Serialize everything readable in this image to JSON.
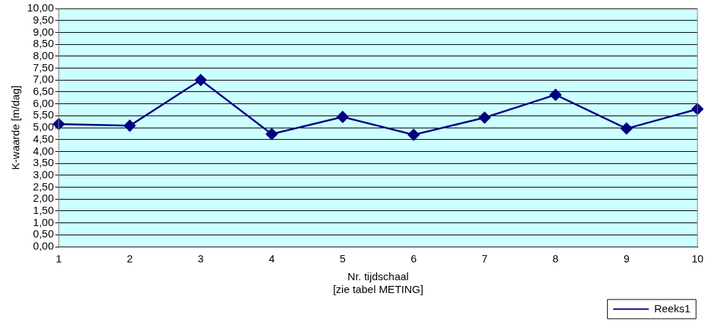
{
  "chart_data": {
    "type": "line",
    "xlabel": "Nr. tijdschaal\n[zie tabel METING]",
    "ylabel": "K-waarde [m/dag]",
    "categories": [
      "1",
      "2",
      "3",
      "4",
      "5",
      "6",
      "7",
      "8",
      "9",
      "10"
    ],
    "series": [
      {
        "name": "Reeks1",
        "color": "#000080",
        "values": [
          5.15,
          5.08,
          7.0,
          4.73,
          5.45,
          4.7,
          5.42,
          6.38,
          4.96,
          5.78
        ]
      }
    ],
    "ylim": [
      0,
      10
    ],
    "yticks": [
      {
        "value": 0,
        "label": "0,00"
      },
      {
        "value": 0.5,
        "label": "0,50"
      },
      {
        "value": 1,
        "label": "1,00"
      },
      {
        "value": 1.5,
        "label": "1,50"
      },
      {
        "value": 2,
        "label": "2,00"
      },
      {
        "value": 2.5,
        "label": "2,50"
      },
      {
        "value": 3,
        "label": "3,00"
      },
      {
        "value": 3.5,
        "label": "3,50"
      },
      {
        "value": 4,
        "label": "4,00"
      },
      {
        "value": 4.5,
        "label": "4,50"
      },
      {
        "value": 5,
        "label": "5,00"
      },
      {
        "value": 5.5,
        "label": "5,50"
      },
      {
        "value": 6,
        "label": "6,00"
      },
      {
        "value": 6.5,
        "label": "6,50"
      },
      {
        "value": 7,
        "label": "7,00"
      },
      {
        "value": 7.5,
        "label": "7,50"
      },
      {
        "value": 8,
        "label": "8,00"
      },
      {
        "value": 8.5,
        "label": "8,50"
      },
      {
        "value": 9,
        "label": "9,00"
      },
      {
        "value": 9.5,
        "label": "9,50"
      },
      {
        "value": 10,
        "label": "10,00"
      }
    ],
    "grid": "y",
    "legend": "bottom right",
    "marker": "diamond",
    "line_style": "solid"
  }
}
